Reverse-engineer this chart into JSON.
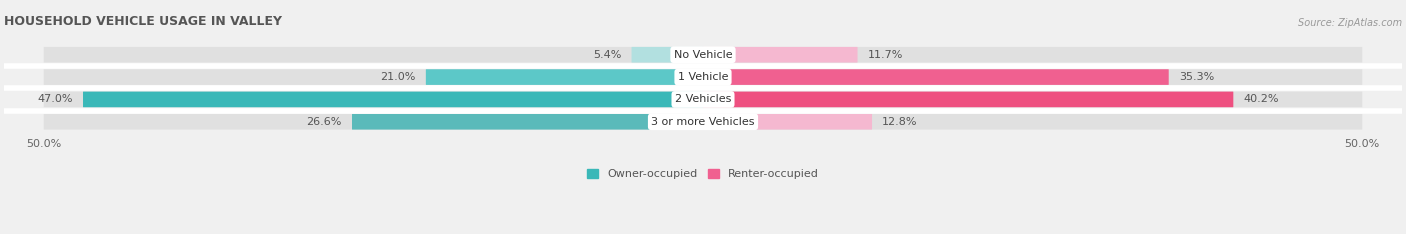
{
  "title": "HOUSEHOLD VEHICLE USAGE IN VALLEY",
  "source": "Source: ZipAtlas.com",
  "categories": [
    "No Vehicle",
    "1 Vehicle",
    "2 Vehicles",
    "3 or more Vehicles"
  ],
  "owner_values": [
    5.4,
    21.0,
    47.0,
    26.6
  ],
  "renter_values": [
    11.7,
    35.3,
    40.2,
    12.8
  ],
  "owner_colors": [
    "#b2e0e0",
    "#5cc8c8",
    "#3ab8b8",
    "#5ababa"
  ],
  "renter_colors": [
    "#f5b8d0",
    "#f06090",
    "#ee5080",
    "#f5b8d0"
  ],
  "bg_color": "#f0f0f0",
  "row_bg_color": "#e0e0e0",
  "axis_max": 50.0,
  "bar_height": 0.7,
  "title_fontsize": 9,
  "label_fontsize": 8,
  "category_fontsize": 8,
  "legend_fontsize": 8,
  "source_fontsize": 7
}
